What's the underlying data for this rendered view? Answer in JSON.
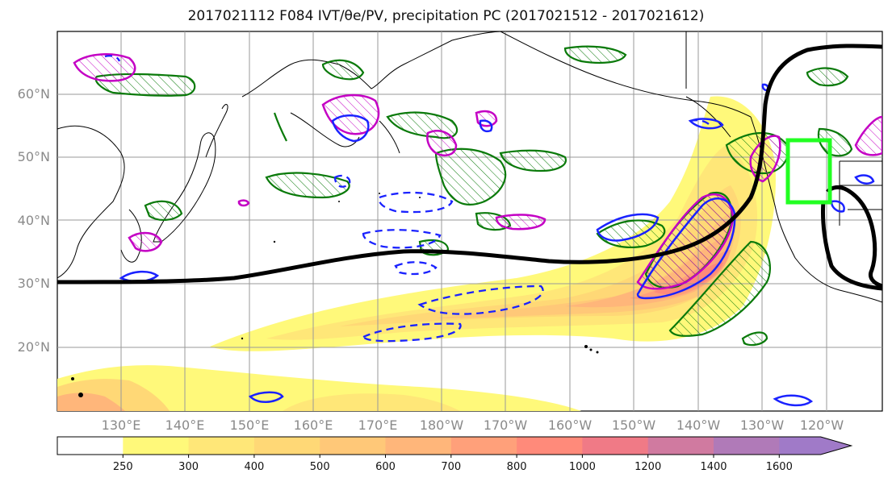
{
  "title": "2017021112 F084 IVT/θe/PV, precipitation PC (2017021512 - 2017021612)",
  "map": {
    "lat_labels": [
      "60°N",
      "50°N",
      "40°N",
      "30°N",
      "20°N"
    ],
    "lon_labels": [
      "130°E",
      "140°E",
      "150°E",
      "160°E",
      "170°E",
      "180°W",
      "170°W",
      "160°W",
      "150°W",
      "140°W",
      "130°W",
      "120°W"
    ],
    "colors": {
      "jet_contour": "#000000",
      "theta_e_contour": "#0a7a0a",
      "pv_contour": "#c400c4",
      "dashed_contour": "#1a22ff",
      "highlight_box": "#22ff22"
    }
  },
  "colorbar": {
    "ticks": [
      "250",
      "300",
      "400",
      "500",
      "600",
      "700",
      "800",
      "1000",
      "1200",
      "1400",
      "1600"
    ],
    "colors": [
      "#ffffff",
      "#fff97a",
      "#ffe778",
      "#ffd876",
      "#ffc878",
      "#ffb67a",
      "#ffa07a",
      "#ff8a7a",
      "#f07a86",
      "#d07aa0",
      "#b07ab8",
      "#a07ac8"
    ]
  }
}
